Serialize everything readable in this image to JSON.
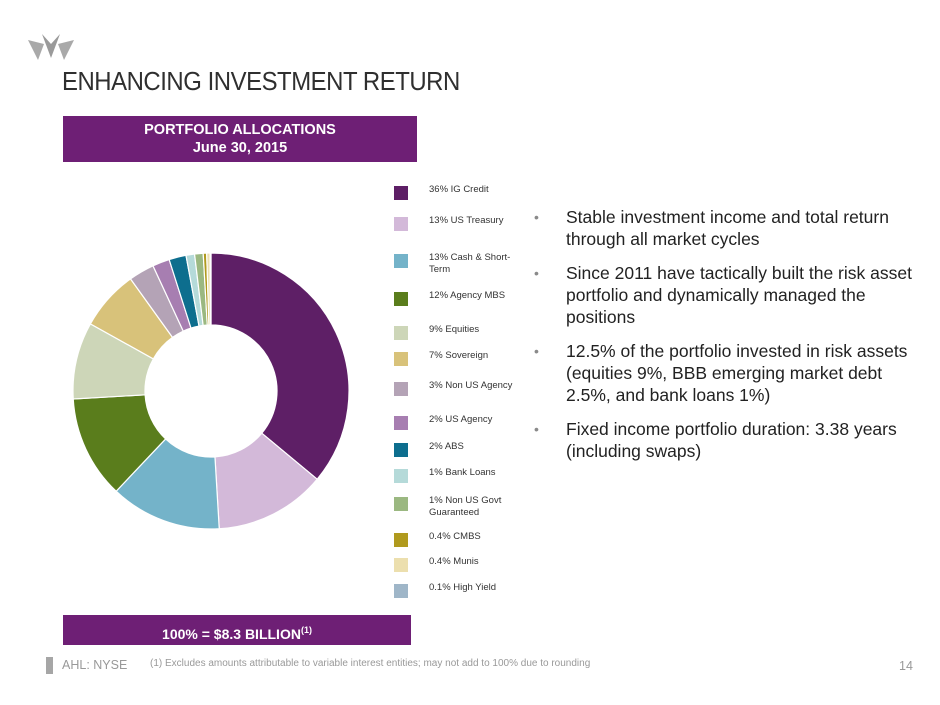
{
  "header": {
    "title": "ENHANCING INVESTMENT RETURN",
    "brand_color": "#6e1f75"
  },
  "banner": {
    "line1": "PORTFOLIO ALLOCATIONS",
    "line2": "June 30, 2015"
  },
  "total": {
    "label": "100% = $8.3 BILLION",
    "footnote_ref": "(1)"
  },
  "bullets": [
    "Stable investment income and total return through all market cycles",
    "Since 2011 have tactically built the risk asset portfolio and dynamically managed the positions",
    "12.5% of the portfolio invested in risk assets (equities 9%, BBB emerging market debt 2.5%, and bank loans 1%)",
    "Fixed income portfolio duration: 3.38 years (including swaps)"
  ],
  "footer": {
    "ticker": "AHL: NYSE",
    "footnote": "(1)   Excludes amounts attributable to variable interest entities; may not add to 100% due to rounding",
    "page": "14"
  },
  "chart_data": {
    "type": "pie",
    "donut": true,
    "categories": [
      "IG Credit",
      "US Treasury",
      "Cash & Short-Term",
      "Agency MBS",
      "Equities",
      "Sovereign",
      "Non US Agency",
      "US Agency",
      "ABS",
      "Bank Loans",
      "Non US Govt Guaranteed",
      "CMBS",
      "Munis",
      "High Yield"
    ],
    "values": [
      36,
      13,
      13,
      12,
      9,
      7,
      3,
      2,
      2,
      1,
      1,
      0.4,
      0.4,
      0.1
    ],
    "colors": [
      "#5e1f66",
      "#d3b9d9",
      "#74b3c9",
      "#5a7d1c",
      "#cdd6b8",
      "#d8c27a",
      "#b4a3b6",
      "#a77eb1",
      "#0d6e8e",
      "#b5dad9",
      "#9bb881",
      "#b09a1e",
      "#ecdfae",
      "#9fb6c8"
    ],
    "legend_labels": [
      "36% IG Credit",
      "13% US Treasury",
      "13% Cash & Short-Term",
      "12% Agency MBS",
      "9% Equities",
      "7% Sovereign",
      "3% Non US Agency",
      "2% US Agency",
      "2% ABS",
      "1% Bank Loans",
      "1% Non US Govt Guaranteed",
      "0.4% CMBS",
      "0.4% Munis",
      "0.1% High Yield"
    ],
    "legend_placement": "right"
  }
}
